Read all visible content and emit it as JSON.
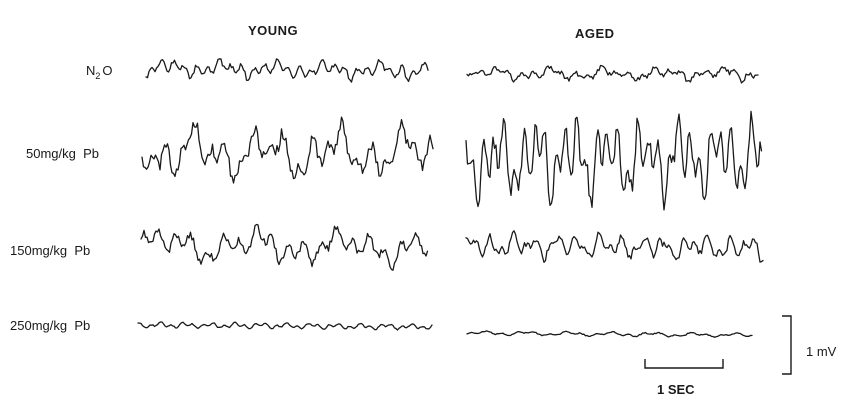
{
  "columns": {
    "young": "YOUNG",
    "aged": "AGED"
  },
  "rows": [
    {
      "label_main": "N",
      "label_sub": "2",
      "label_tail": "O",
      "young_amp": 5,
      "aged_amp": 5
    },
    {
      "label_main": "50mg/kg  Pb",
      "label_sub": "",
      "label_tail": "",
      "young_amp": 14,
      "aged_amp": 18
    },
    {
      "label_main": "150mg/kg  Pb",
      "label_sub": "",
      "label_tail": "",
      "young_amp": 8,
      "aged_amp": 7
    },
    {
      "label_main": "250mg/kg  Pb",
      "label_sub": "",
      "label_tail": "",
      "young_amp": 1.2,
      "aged_amp": 1.2
    }
  ],
  "scale_bars": {
    "time": "1 SEC",
    "voltage": "1 mV"
  }
}
